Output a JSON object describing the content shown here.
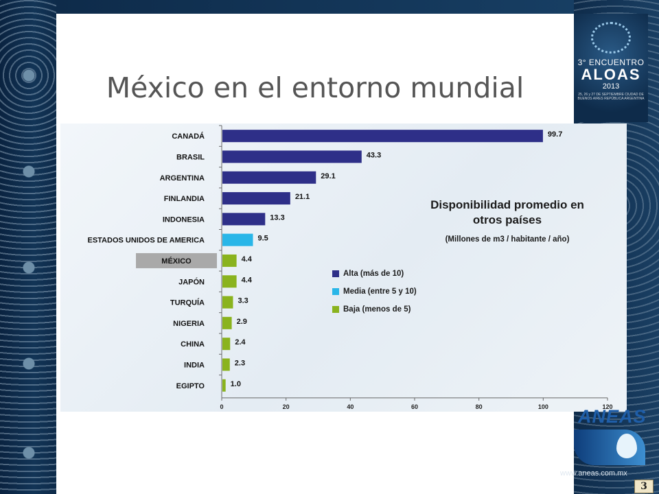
{
  "slide": {
    "title": "México en el entorno mundial",
    "page_number": "3"
  },
  "logos": {
    "event": {
      "edition": "3° ENCUENTRO",
      "name": "ALOAS",
      "year": "2013",
      "details": "25, 26 y 27 DE SEPTIEMBRE CIUDAD DE BUENOS AIRES REPÚBLICA ARGENTINA"
    },
    "aneas": {
      "name": "ANEAS",
      "url": "www.aneas.com.mx"
    }
  },
  "colors": {
    "alta": "#2e2f88",
    "media": "#29b6e8",
    "baja": "#8ab31e",
    "mexico_label_bg": "#a9a9a9"
  },
  "chart_data": {
    "type": "bar",
    "orientation": "horizontal",
    "title": "Disponibilidad promedio en otros países",
    "subtitle": "(Millones de  m3 / habitante / año)",
    "categories": [
      "CANADÁ",
      "BRASIL",
      "ARGENTINA",
      "FINLANDIA",
      "INDONESIA",
      "ESTADOS UNIDOS DE AMERICA",
      "MÉXICO",
      "JAPÓN",
      "TURQUÍA",
      "NIGERIA",
      "CHINA",
      "INDIA",
      "EGIPTO"
    ],
    "values": [
      99.7,
      43.3,
      29.1,
      21.1,
      13.3,
      9.5,
      4.4,
      4.4,
      3.3,
      2.9,
      2.4,
      2.3,
      1.0
    ],
    "value_labels": [
      "99.7",
      "43.3",
      "29.1",
      "21.1",
      "13.3",
      "9.5",
      "4.4",
      "4.4",
      "3.3",
      "2.9",
      "2.4",
      "2.3",
      "1.0"
    ],
    "groups": [
      "alta",
      "alta",
      "alta",
      "alta",
      "alta",
      "media",
      "baja",
      "baja",
      "baja",
      "baja",
      "baja",
      "baja",
      "baja"
    ],
    "highlighted_category": "MÉXICO",
    "legend": [
      {
        "key": "alta",
        "label": "Alta (más de 10)"
      },
      {
        "key": "media",
        "label": "Media (entre 5 y 10)"
      },
      {
        "key": "baja",
        "label": "Baja (menos de 5)"
      }
    ],
    "legend_position": "right",
    "xlim": [
      0,
      120
    ],
    "xticks": [
      "0",
      "20",
      "40",
      "60",
      "80",
      "100",
      "120"
    ],
    "grid": false
  }
}
